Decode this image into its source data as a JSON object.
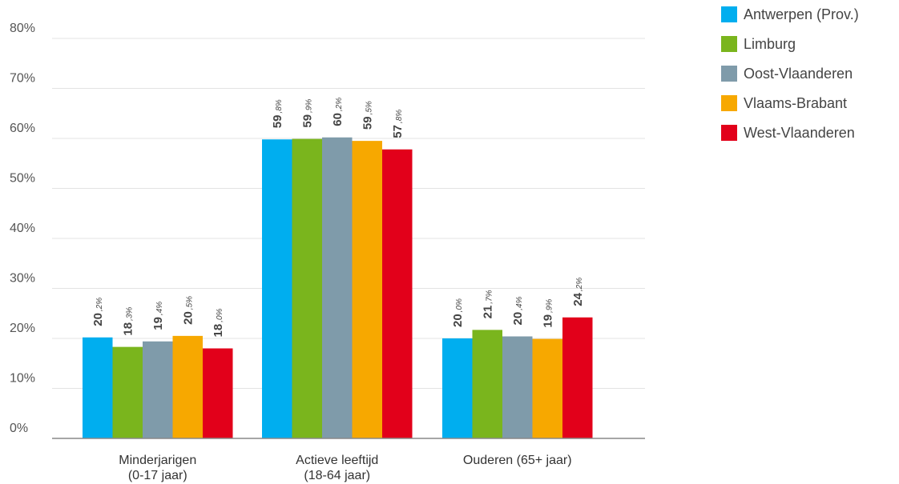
{
  "chart_data": {
    "type": "bar",
    "categories": [
      [
        "Minderjarigen",
        "(0-17 jaar)"
      ],
      [
        "Actieve leeftijd",
        "(18-64 jaar)"
      ],
      [
        "Ouderen (65+ jaar)"
      ]
    ],
    "series": [
      {
        "name": "Antwerpen (Prov.)",
        "color": "#00AEEF",
        "values": [
          20.2,
          59.8,
          20.0
        ],
        "labels": [
          [
            "20",
            ",2%"
          ],
          [
            "59",
            ",8%"
          ],
          [
            "20",
            ",0%"
          ]
        ]
      },
      {
        "name": "Limburg",
        "color": "#7AB51D",
        "values": [
          18.3,
          59.9,
          21.7
        ],
        "labels": [
          [
            "18",
            ",3%"
          ],
          [
            "59",
            ",9%"
          ],
          [
            "21",
            ",7%"
          ]
        ]
      },
      {
        "name": "Oost-Vlaanderen",
        "color": "#7F9BAA",
        "values": [
          19.4,
          60.2,
          20.4
        ],
        "labels": [
          [
            "19",
            ",4%"
          ],
          [
            "60",
            ",2%"
          ],
          [
            "20",
            ",4%"
          ]
        ]
      },
      {
        "name": "Vlaams-Brabant",
        "color": "#F7A800",
        "values": [
          20.5,
          59.5,
          19.9
        ],
        "labels": [
          [
            "20",
            ",5%"
          ],
          [
            "59",
            ",5%"
          ],
          [
            "19",
            ",9%"
          ]
        ]
      },
      {
        "name": "West-Vlaanderen",
        "color": "#E2001A",
        "values": [
          18.0,
          57.8,
          24.2
        ],
        "labels": [
          [
            "18",
            ",0%"
          ],
          [
            "57",
            ",8%"
          ],
          [
            "24",
            ",2%"
          ]
        ]
      }
    ],
    "yticks": [
      "0%",
      "10%",
      "20%",
      "30%",
      "40%",
      "50%",
      "60%",
      "70%",
      "80%"
    ],
    "ylim": [
      0,
      80
    ],
    "grid": true,
    "legend_position": "top-right",
    "title": "",
    "xlabel": "",
    "ylabel": ""
  }
}
